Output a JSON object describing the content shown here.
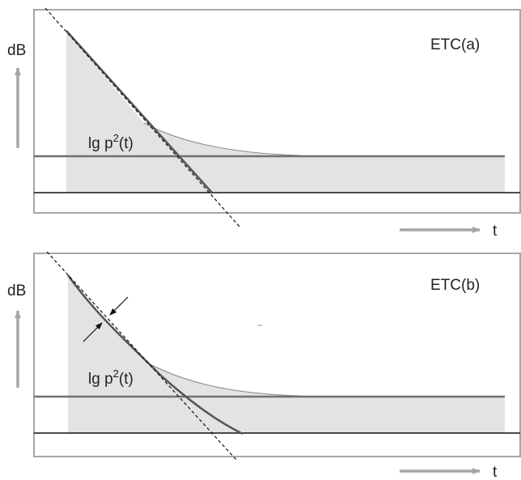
{
  "colors": {
    "frame": "#a6a6a6",
    "fill": "#e3e3e3",
    "curve": "#555555",
    "noise_line": "#707070",
    "base_line": "#111111",
    "axis_arrow": "#a6a6a6",
    "text": "#222222"
  },
  "panels": [
    {
      "etc_label": "ETC(a)",
      "y_axis_label": "dB",
      "x_axis_label": "t",
      "curve_label_main": "lg p",
      "curve_label_sup": "2",
      "curve_label_arg": "(t)"
    },
    {
      "etc_label": "ETC(b)",
      "y_axis_label": "dB",
      "x_axis_label": "t",
      "curve_label_main": "lg p",
      "curve_label_sup": "2",
      "curve_label_arg": "(t)"
    }
  ]
}
